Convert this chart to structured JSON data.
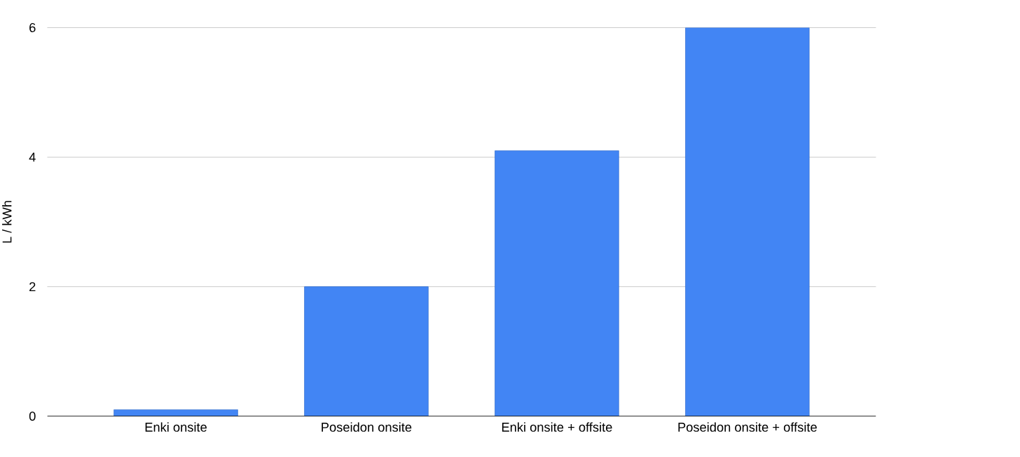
{
  "chart_data": {
    "type": "bar",
    "ylabel": "L / kWh",
    "categories": [
      "Enki onsite",
      "Poseidon onsite",
      "Enki onsite + offsite",
      "Poseidon onsite + offsite"
    ],
    "values": [
      0.1,
      2.0,
      4.1,
      6.0
    ],
    "color": "#4285f4",
    "ylim": [
      0,
      6
    ],
    "yticks": [
      0,
      2,
      4,
      6
    ],
    "grid": "y"
  }
}
